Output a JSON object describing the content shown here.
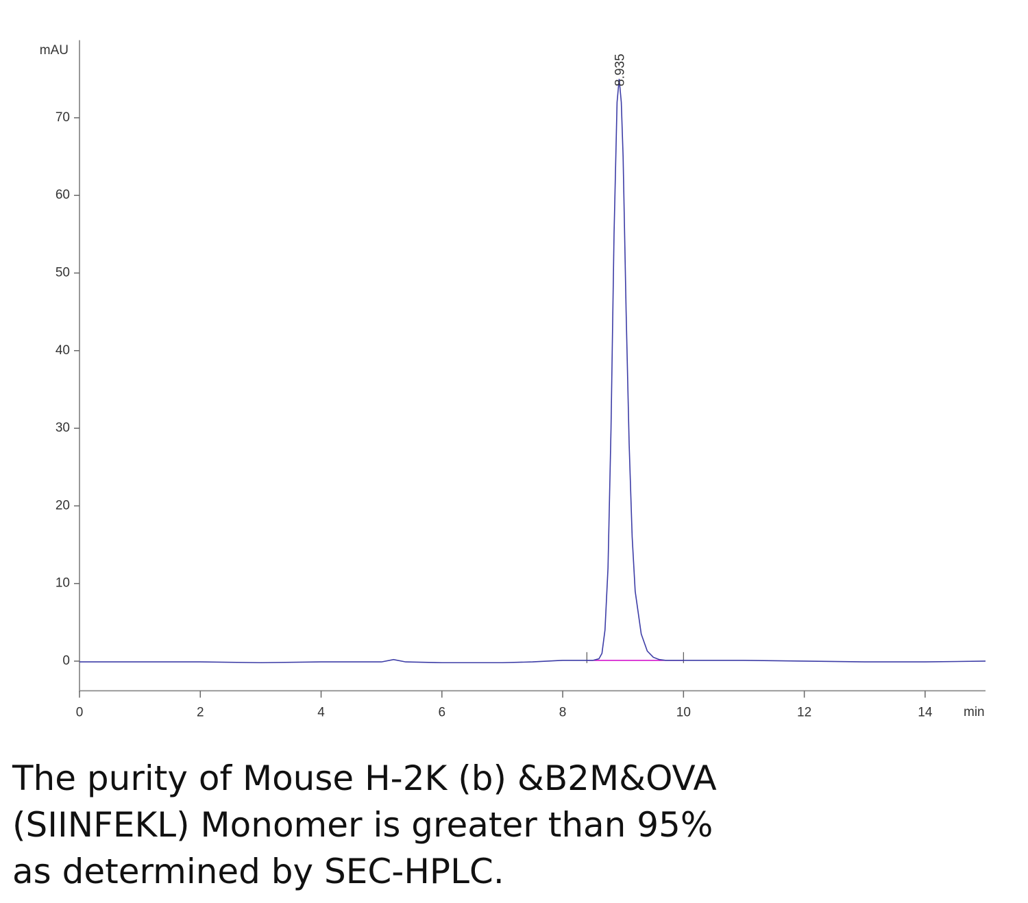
{
  "chart_data": {
    "type": "line",
    "y_label": "mAU",
    "x_label": "min",
    "xlim": [
      0,
      15
    ],
    "ylim": [
      -4,
      80
    ],
    "xticks": [
      0,
      2,
      4,
      6,
      8,
      10,
      12,
      14
    ],
    "yticks": [
      0,
      10,
      20,
      30,
      40,
      50,
      60,
      70
    ],
    "series": [
      {
        "color": "#3c3ca6",
        "x": [
          0,
          1,
          2,
          3,
          4,
          5,
          5.2,
          5.4,
          6,
          7,
          7.5,
          8,
          8.4,
          8.5,
          8.6,
          8.65,
          8.7,
          8.75,
          8.8,
          8.85,
          8.9,
          8.935,
          8.97,
          9.0,
          9.05,
          9.1,
          9.15,
          9.2,
          9.3,
          9.4,
          9.5,
          9.6,
          9.7,
          9.8,
          10,
          11,
          12,
          13,
          14,
          15
        ],
        "values": [
          -0.1,
          -0.1,
          -0.1,
          -0.2,
          -0.1,
          -0.1,
          0.2,
          -0.1,
          -0.2,
          -0.2,
          -0.1,
          0.1,
          0.1,
          0.1,
          0.3,
          1,
          4,
          12,
          30,
          55,
          72,
          75,
          72,
          65,
          45,
          28,
          16,
          9,
          3.5,
          1.3,
          0.5,
          0.2,
          0.1,
          0.1,
          0.1,
          0.1,
          0,
          -0.1,
          -0.1,
          0
        ]
      }
    ],
    "integration_baseline": {
      "color": "#d000c8",
      "x": [
        8.4,
        10
      ],
      "values": [
        0.1,
        0.1
      ]
    },
    "peak_annotation": {
      "x": 8.935
    },
    "caption": [
      "The purity of Mouse H-2K (b) &B2M&OVA",
      "(SIINFEKL) Monomer is greater than 95%",
      "as determined by SEC-HPLC."
    ]
  }
}
